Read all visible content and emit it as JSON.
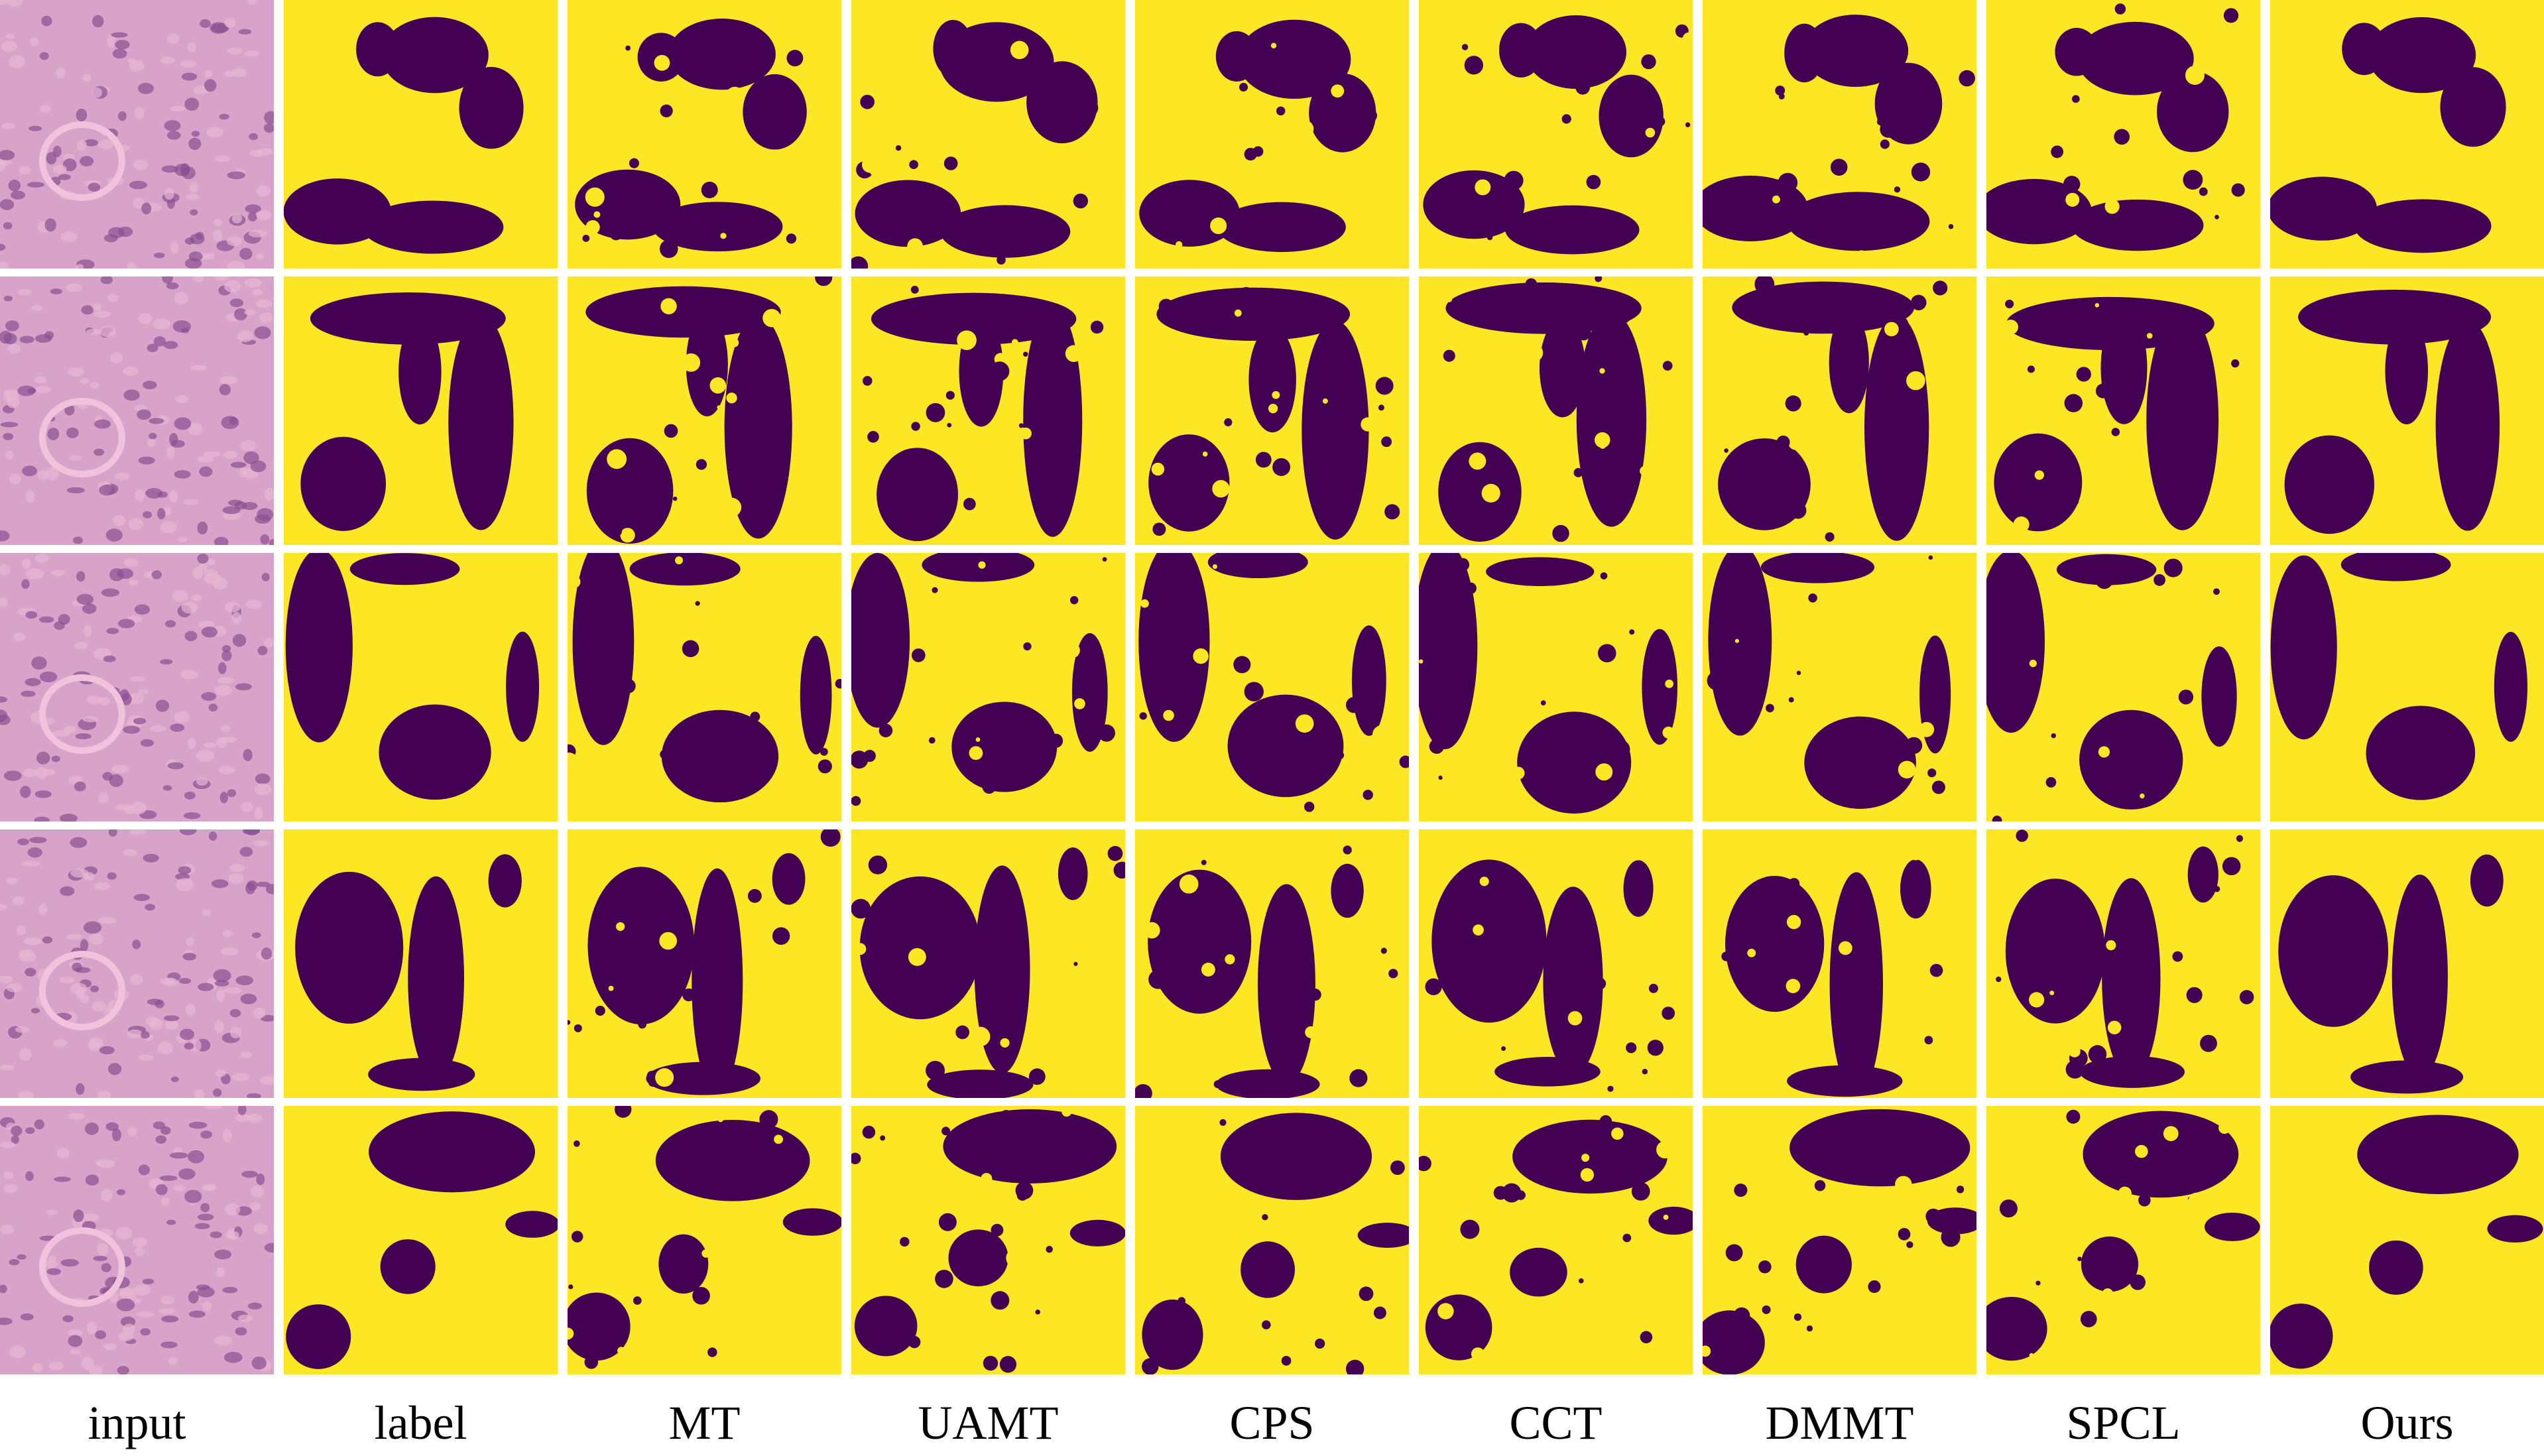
{
  "columns": [
    "input",
    "label",
    "MT",
    "UAMT",
    "CPS",
    "CCT",
    "DMMT",
    "SPCL",
    "Ours"
  ]
}
